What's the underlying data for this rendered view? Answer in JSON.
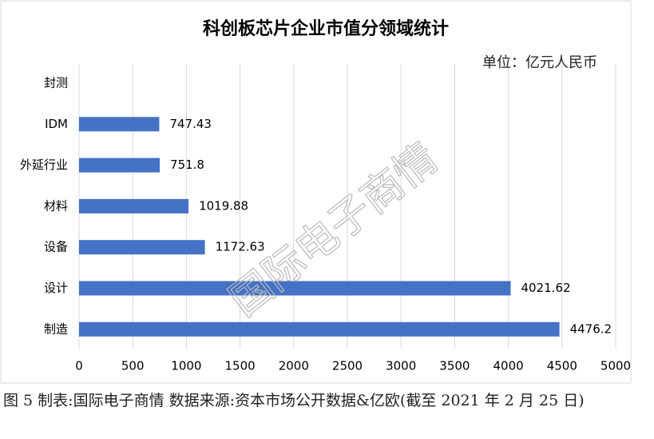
{
  "chart_data": {
    "type": "bar",
    "orientation": "horizontal",
    "title": "科创板芯片企业市值分领域统计",
    "unit_label": "单位：亿元人民币",
    "watermark": "国际电子商情",
    "categories": [
      "封测",
      "IDM",
      "外延行业",
      "材料",
      "设备",
      "设计",
      "制造"
    ],
    "values": [
      null,
      747.43,
      751.8,
      1019.88,
      1172.63,
      4021.62,
      4476.2
    ],
    "color": "#4472c4",
    "xlim": [
      0,
      5000
    ],
    "xticks": [
      0,
      500,
      1000,
      1500,
      2000,
      2500,
      3000,
      3500,
      4000,
      4500,
      5000
    ],
    "grid": true
  },
  "caption": "图 5  制表:国际电子商情 数据来源:资本市场公开数据&亿欧(截至 2021 年 2 月 25 日)"
}
